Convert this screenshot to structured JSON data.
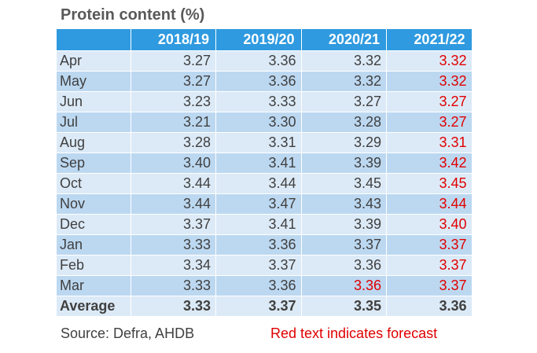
{
  "chart_data": {
    "type": "table",
    "title": "Protein content (%)",
    "columns": [
      "2018/19",
      "2019/20",
      "2020/21",
      "2021/22"
    ],
    "rows": [
      {
        "label": "Apr",
        "values": [
          "3.27",
          "3.36",
          "3.32",
          "3.32"
        ],
        "forecast": [
          false,
          false,
          false,
          true
        ]
      },
      {
        "label": "May",
        "values": [
          "3.27",
          "3.36",
          "3.32",
          "3.32"
        ],
        "forecast": [
          false,
          false,
          false,
          true
        ]
      },
      {
        "label": "Jun",
        "values": [
          "3.23",
          "3.33",
          "3.27",
          "3.27"
        ],
        "forecast": [
          false,
          false,
          false,
          true
        ]
      },
      {
        "label": "Jul",
        "values": [
          "3.21",
          "3.30",
          "3.28",
          "3.27"
        ],
        "forecast": [
          false,
          false,
          false,
          true
        ]
      },
      {
        "label": "Aug",
        "values": [
          "3.28",
          "3.31",
          "3.29",
          "3.31"
        ],
        "forecast": [
          false,
          false,
          false,
          true
        ]
      },
      {
        "label": "Sep",
        "values": [
          "3.40",
          "3.41",
          "3.39",
          "3.42"
        ],
        "forecast": [
          false,
          false,
          false,
          true
        ]
      },
      {
        "label": "Oct",
        "values": [
          "3.44",
          "3.44",
          "3.45",
          "3.45"
        ],
        "forecast": [
          false,
          false,
          false,
          true
        ]
      },
      {
        "label": "Nov",
        "values": [
          "3.44",
          "3.47",
          "3.43",
          "3.44"
        ],
        "forecast": [
          false,
          false,
          false,
          true
        ]
      },
      {
        "label": "Dec",
        "values": [
          "3.37",
          "3.41",
          "3.39",
          "3.40"
        ],
        "forecast": [
          false,
          false,
          false,
          true
        ]
      },
      {
        "label": "Jan",
        "values": [
          "3.33",
          "3.36",
          "3.37",
          "3.37"
        ],
        "forecast": [
          false,
          false,
          false,
          true
        ]
      },
      {
        "label": "Feb",
        "values": [
          "3.34",
          "3.37",
          "3.36",
          "3.37"
        ],
        "forecast": [
          false,
          false,
          false,
          true
        ]
      },
      {
        "label": "Mar",
        "values": [
          "3.33",
          "3.36",
          "3.36",
          "3.37"
        ],
        "forecast": [
          false,
          false,
          true,
          true
        ]
      }
    ],
    "average": {
      "label": "Average",
      "values": [
        "3.33",
        "3.37",
        "3.35",
        "3.36"
      ]
    },
    "source": "Source: Defra, AHDB",
    "note": "Red text indicates forecast"
  },
  "colors": {
    "header_bg": "#2f9ae0",
    "row_light": "#dceaf7",
    "row_dark": "#bcd8f1",
    "forecast_text": "#e00000"
  }
}
